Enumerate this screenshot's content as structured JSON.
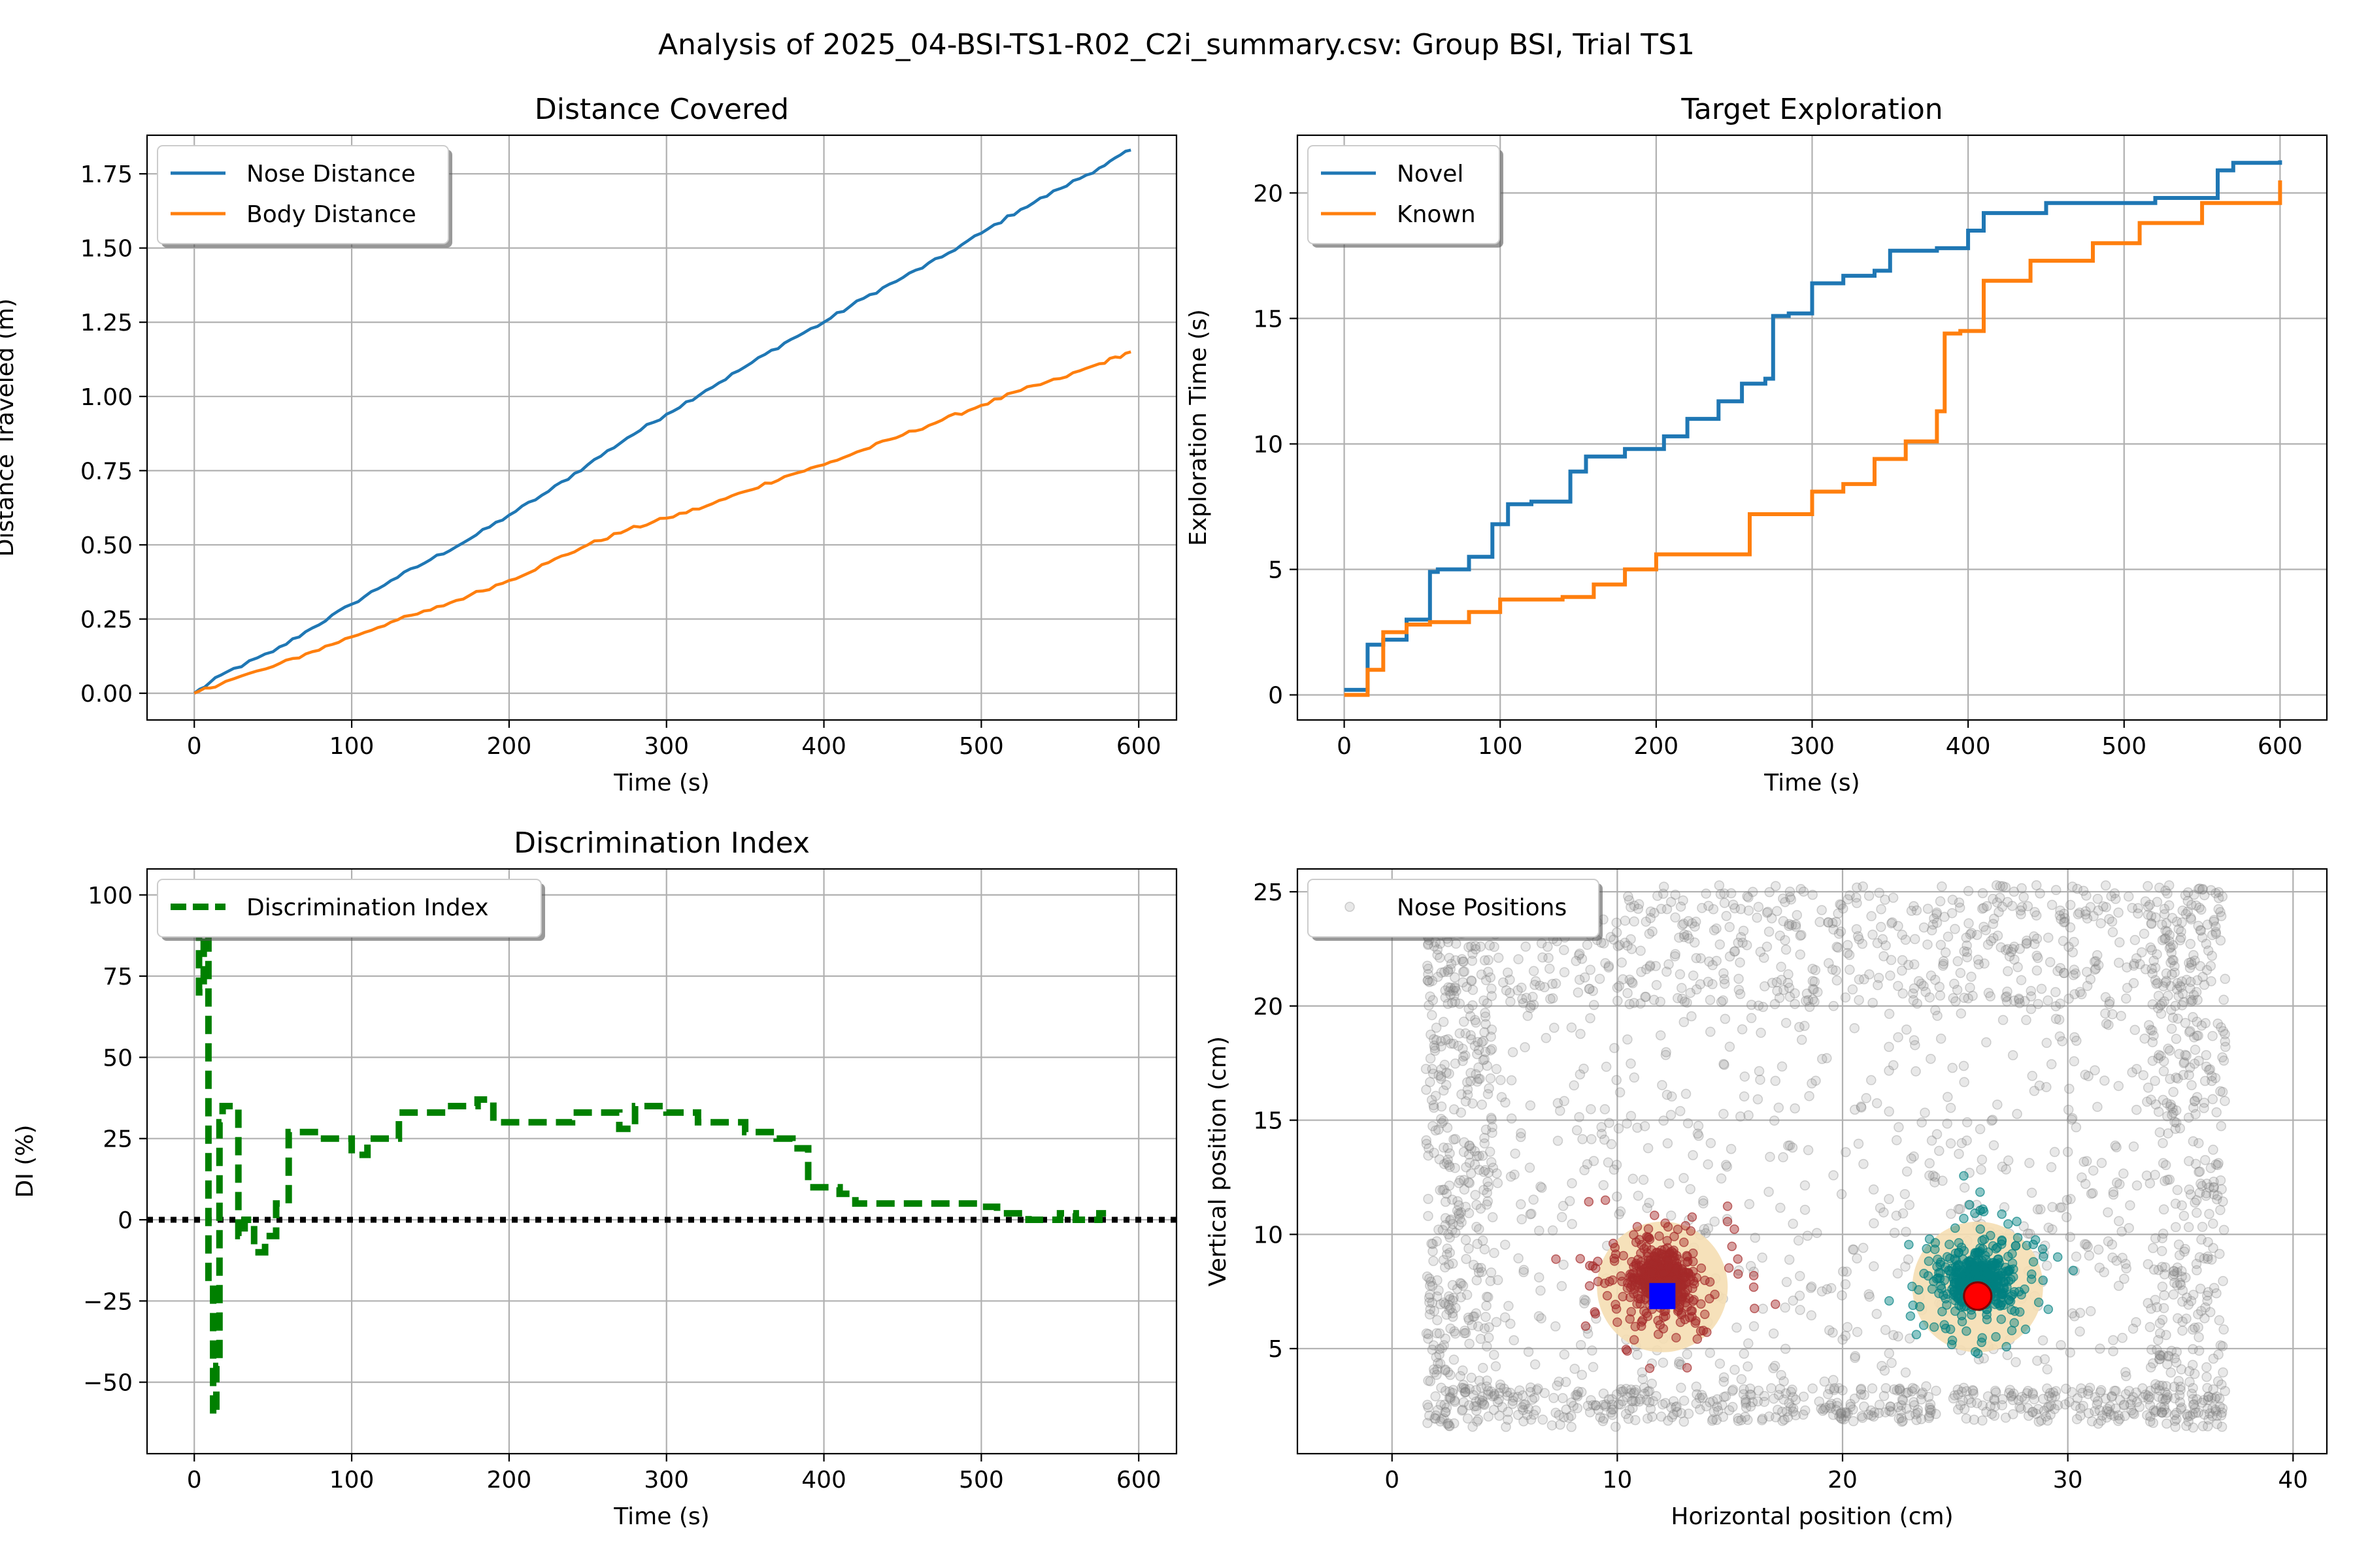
{
  "figure": {
    "suptitle": "Analysis of 2025_04-BSI-TS1-R02_C2i_summary.csv: Group BSI, Trial TS1"
  },
  "colors": {
    "blue": "#1f77b4",
    "orange": "#ff7f0e",
    "green": "#008000",
    "grey": "#808080",
    "dark_red": "#a52a2a",
    "teal": "#008080",
    "wheat": "#f5deb3",
    "marker_blue": "#0000ff",
    "marker_red": "#ff0000",
    "grid": "#b0b0b0"
  },
  "chart_data": [
    {
      "id": "distance",
      "type": "line",
      "title": "Distance Covered",
      "xlabel": "Time (s)",
      "ylabel": "Distance Traveled (m)",
      "xlim": [
        -30,
        624
      ],
      "ylim": [
        -0.09,
        1.88
      ],
      "xticks": [
        0,
        100,
        200,
        300,
        400,
        500,
        600
      ],
      "yticks": [
        0.0,
        0.25,
        0.5,
        0.75,
        1.0,
        1.25,
        1.5,
        1.75
      ],
      "ytick_labels": [
        "0.00",
        "0.25",
        "0.50",
        "0.75",
        "1.00",
        "1.25",
        "1.50",
        "1.75"
      ],
      "grid": true,
      "legend": "upper left",
      "series": [
        {
          "name": "Nose Distance",
          "color": "#1f77b4",
          "x": [
            0,
            20,
            50,
            75,
            100,
            125,
            150,
            175,
            200,
            225,
            250,
            275,
            300,
            325,
            350,
            375,
            400,
            425,
            450,
            475,
            500,
            525,
            550,
            575,
            595
          ],
          "y": [
            0,
            0.07,
            0.14,
            0.22,
            0.3,
            0.38,
            0.45,
            0.52,
            0.6,
            0.68,
            0.77,
            0.86,
            0.94,
            1.02,
            1.1,
            1.18,
            1.25,
            1.33,
            1.4,
            1.47,
            1.55,
            1.63,
            1.7,
            1.77,
            1.83
          ]
        },
        {
          "name": "Body Distance",
          "color": "#ff7f0e",
          "x": [
            0,
            20,
            50,
            75,
            100,
            125,
            150,
            175,
            200,
            225,
            250,
            275,
            300,
            325,
            350,
            375,
            400,
            425,
            450,
            475,
            500,
            525,
            550,
            575,
            595
          ],
          "y": [
            0,
            0.04,
            0.09,
            0.14,
            0.19,
            0.24,
            0.28,
            0.33,
            0.38,
            0.44,
            0.5,
            0.55,
            0.59,
            0.63,
            0.68,
            0.73,
            0.77,
            0.82,
            0.87,
            0.92,
            0.97,
            1.02,
            1.06,
            1.11,
            1.15
          ]
        }
      ]
    },
    {
      "id": "exploration",
      "type": "line",
      "title": "Target Exploration",
      "xlabel": "Time (s)",
      "ylabel": "Exploration Time (s)",
      "xlim": [
        -30,
        630
      ],
      "ylim": [
        -1.0,
        22.3
      ],
      "xticks": [
        0,
        100,
        200,
        300,
        400,
        500,
        600
      ],
      "yticks": [
        0,
        5,
        10,
        15,
        20
      ],
      "ytick_labels": [
        "0",
        "5",
        "10",
        "15",
        "20"
      ],
      "grid": true,
      "legend": "upper left",
      "series": [
        {
          "name": "Novel",
          "color": "#1f77b4",
          "x": [
            0,
            8,
            15,
            25,
            40,
            55,
            60,
            80,
            95,
            105,
            120,
            145,
            155,
            180,
            205,
            220,
            240,
            255,
            270,
            275,
            285,
            300,
            320,
            340,
            350,
            380,
            400,
            410,
            450,
            520,
            560,
            570,
            600
          ],
          "y": [
            0.2,
            0.2,
            2.0,
            2.2,
            3.0,
            4.9,
            5.0,
            5.5,
            6.8,
            7.6,
            7.7,
            8.9,
            9.5,
            9.8,
            10.3,
            11.0,
            11.7,
            12.4,
            12.6,
            15.1,
            15.2,
            16.4,
            16.7,
            16.9,
            17.7,
            17.8,
            18.5,
            19.2,
            19.6,
            19.8,
            20.9,
            21.2,
            21.3
          ]
        },
        {
          "name": "Known",
          "color": "#ff7f0e",
          "x": [
            0,
            8,
            15,
            25,
            40,
            55,
            80,
            100,
            140,
            160,
            180,
            200,
            260,
            300,
            320,
            340,
            360,
            380,
            385,
            395,
            410,
            440,
            480,
            510,
            550,
            600
          ],
          "y": [
            0,
            0,
            1.0,
            2.5,
            2.8,
            2.9,
            3.3,
            3.8,
            3.9,
            4.4,
            5.0,
            5.6,
            7.2,
            8.1,
            8.4,
            9.4,
            10.1,
            11.3,
            14.4,
            14.5,
            16.5,
            17.3,
            18.0,
            18.8,
            19.6,
            20.5
          ]
        }
      ]
    },
    {
      "id": "discrimination",
      "type": "line",
      "title": "Discrimination Index",
      "xlabel": "Time (s)",
      "ylabel": "DI (%)",
      "xlim": [
        -30,
        624
      ],
      "ylim": [
        -72,
        108
      ],
      "xticks": [
        0,
        100,
        200,
        300,
        400,
        500,
        600
      ],
      "yticks": [
        -50,
        -25,
        0,
        25,
        50,
        75,
        100
      ],
      "ytick_labels": [
        "−50",
        "−25",
        "0",
        "25",
        "50",
        "75",
        "100"
      ],
      "grid": true,
      "legend": "upper left",
      "reference_line": {
        "y": 0,
        "color": "#000000",
        "style": "dotted"
      },
      "series": [
        {
          "name": "Discrimination Index",
          "color": "#008000",
          "style": "dashed",
          "x": [
            0,
            3,
            6,
            9,
            12,
            14,
            16,
            18,
            22,
            28,
            32,
            38,
            45,
            52,
            60,
            75,
            80,
            95,
            100,
            110,
            130,
            160,
            180,
            190,
            210,
            240,
            270,
            280,
            300,
            320,
            350,
            370,
            380,
            390,
            400,
            410,
            420,
            450,
            480,
            500,
            510,
            530,
            550,
            560,
            575,
            585
          ],
          "y": [
            90,
            70,
            88,
            -20,
            -60,
            -45,
            30,
            35,
            35,
            -5,
            0,
            -10,
            -5,
            5,
            27,
            27,
            25,
            25,
            20,
            25,
            33,
            35,
            37,
            30,
            30,
            33,
            28,
            35,
            33,
            30,
            27,
            25,
            22,
            10,
            10,
            8,
            5,
            5,
            5,
            4,
            2,
            0,
            2,
            0,
            2,
            2
          ]
        }
      ]
    },
    {
      "id": "positions",
      "type": "scatter",
      "xlabel": "Horizontal position (cm)",
      "ylabel": "Vertical position (cm)",
      "xlim": [
        -4.2,
        41.5
      ],
      "ylim": [
        0.4,
        26.0
      ],
      "xticks": [
        0,
        10,
        20,
        30,
        40
      ],
      "yticks": [
        5,
        10,
        15,
        20,
        25
      ],
      "ytick_labels": [
        "5",
        "10",
        "15",
        "20",
        "25"
      ],
      "grid": true,
      "legend": "upper left",
      "series": [
        {
          "name": "Nose Positions",
          "color": "#808080",
          "x_range": [
            1.5,
            37.0
          ],
          "y_range": [
            1.5,
            25.3
          ]
        }
      ],
      "target_regions": [
        {
          "center": [
            12.0,
            8.0
          ],
          "color": "#a52a2a",
          "zone_color": "#f5deb3"
        },
        {
          "center": [
            26.0,
            8.0
          ],
          "color": "#008080",
          "zone_color": "#f5deb3"
        }
      ],
      "markers": [
        {
          "shape": "square",
          "x": 12.0,
          "y": 7.3,
          "color": "#0000ff"
        },
        {
          "shape": "circle",
          "x": 26.0,
          "y": 7.3,
          "color": "#ff0000"
        }
      ]
    }
  ]
}
